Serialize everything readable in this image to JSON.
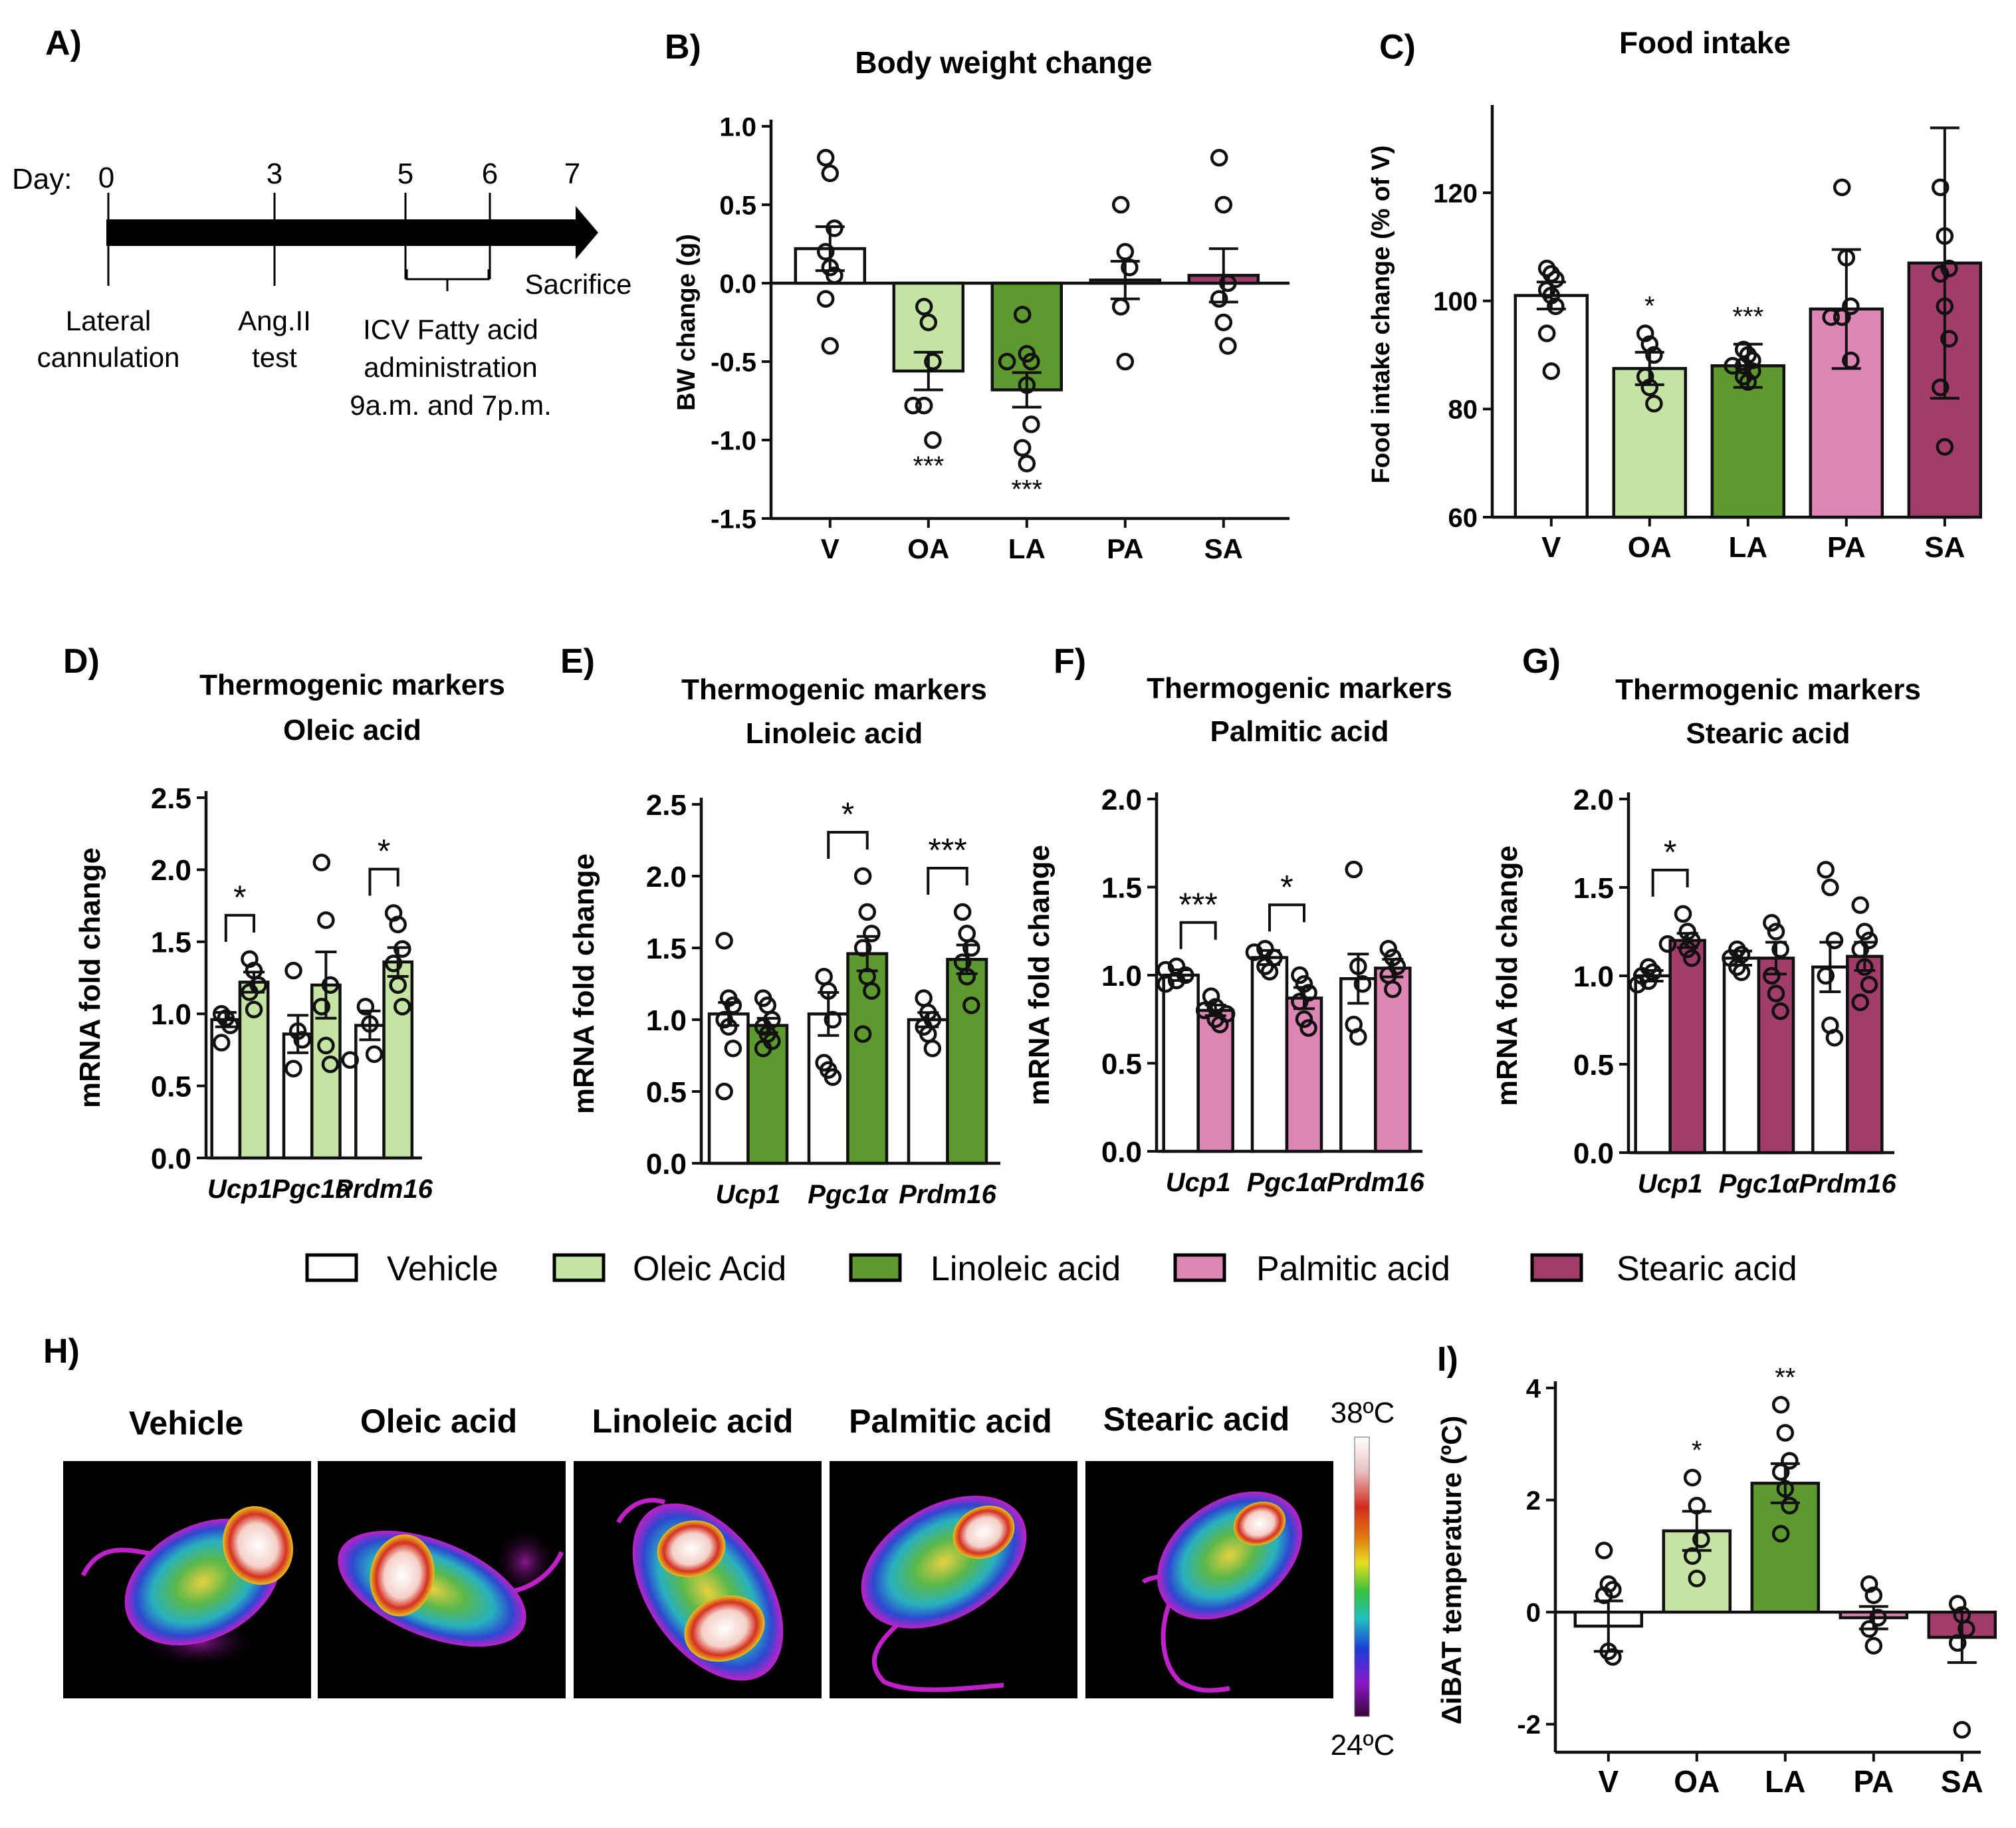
{
  "colors": {
    "V": "#ffffff",
    "OA": "#c5e3a2",
    "LA": "#5e9930",
    "PA": "#dd86b3",
    "SA": "#a23c6a",
    "axis": "#111111"
  },
  "panel_a": {
    "label": "A)",
    "day_label": "Day:",
    "days": [
      "0",
      "3",
      "5",
      "6",
      "7"
    ],
    "events": {
      "cannulation": [
        "Lateral",
        "cannulation"
      ],
      "angii": [
        "Ang.II",
        "test"
      ],
      "icv": [
        "ICV Fatty acid",
        "administration",
        "9a.m. and 7p.m."
      ],
      "sacrifice": "Sacrifice"
    }
  },
  "panel_d_label": "D)",
  "panel_e_label": "E)",
  "panel_f_label": "F)",
  "panel_g_label": "G)",
  "legend": [
    {
      "key": "V",
      "label": "Vehicle"
    },
    {
      "key": "OA",
      "label": "Oleic Acid"
    },
    {
      "key": "LA",
      "label": "Linoleic acid"
    },
    {
      "key": "PA",
      "label": "Palmitic acid"
    },
    {
      "key": "SA",
      "label": "Stearic acid"
    }
  ],
  "panel_h": {
    "label": "H)",
    "titles": [
      "Vehicle",
      "Oleic acid",
      "Linoleic acid",
      "Palmitic acid",
      "Stearic acid"
    ],
    "scale_max": "38ºC",
    "scale_min": "24ºC"
  },
  "chart_data": [
    {
      "id": "B",
      "panel_label": "B)",
      "type": "bar",
      "title": "Body weight change",
      "ylabel": "BW change (g)",
      "ylim": [
        -1.5,
        1.0
      ],
      "yticks": [
        "1.0",
        "0.5",
        "0.0",
        "-0.5",
        "-1.0",
        "-1.5"
      ],
      "categories": [
        "V",
        "OA",
        "LA",
        "PA",
        "SA"
      ],
      "values": [
        0.22,
        -0.56,
        -0.68,
        0.02,
        0.05
      ],
      "errors": [
        0.14,
        0.12,
        0.11,
        0.12,
        0.17
      ],
      "points": [
        [
          0.8,
          0.7,
          0.35,
          0.2,
          0.1,
          0.05,
          -0.1,
          -0.4
        ],
        [
          -0.15,
          -0.25,
          -0.5,
          -0.78,
          -0.78,
          -1.0
        ],
        [
          -0.2,
          -0.45,
          -0.5,
          -0.5,
          -0.65,
          -0.9,
          -1.05,
          -1.15
        ],
        [
          0.5,
          0.2,
          0.1,
          -0.15,
          -0.5
        ],
        [
          0.8,
          0.5,
          0.0,
          -0.1,
          -0.25,
          -0.4
        ]
      ],
      "annotations": [
        {
          "category": "OA",
          "text": "***"
        },
        {
          "category": "LA",
          "text": "***"
        }
      ]
    },
    {
      "id": "C",
      "panel_label": "C)",
      "type": "bar",
      "title": "Food intake",
      "ylabel": "Food intake change (% of V)",
      "ylim": [
        60,
        135
      ],
      "yticks": [
        "120",
        "100",
        "80",
        "60"
      ],
      "categories": [
        "V",
        "OA",
        "LA",
        "PA",
        "SA"
      ],
      "values": [
        101,
        87.5,
        88,
        98.5,
        107
      ],
      "errors": [
        2.5,
        3,
        4,
        11,
        25
      ],
      "points": [
        [
          106,
          105,
          104,
          102,
          101,
          99,
          94,
          87
        ],
        [
          94,
          92,
          90,
          86,
          84,
          81
        ],
        [
          91,
          90,
          89,
          88,
          88,
          87,
          86,
          85
        ],
        [
          121,
          108,
          99,
          97,
          97,
          89
        ],
        [
          121,
          112,
          106,
          105,
          99,
          93,
          84,
          73
        ]
      ],
      "annotations": [
        {
          "category": "OA",
          "text": "*"
        },
        {
          "category": "LA",
          "text": "***"
        }
      ]
    },
    {
      "id": "D",
      "type": "bar",
      "title": [
        "Thermogenic markers",
        "Oleic acid"
      ],
      "ylabel": "mRNA fold change",
      "ylim": [
        0,
        2.5
      ],
      "yticks": [
        "2.5",
        "2.0",
        "1.5",
        "1.0",
        "0.5",
        "0.0"
      ],
      "categories": [
        "Ucp1",
        "Pgc1α",
        "Prdm16"
      ],
      "treatment": "OA",
      "vehicle": {
        "values": [
          0.96,
          0.86,
          0.92
        ],
        "errors": [
          0.05,
          0.13,
          0.1
        ],
        "points": [
          [
            1.0,
            0.97,
            0.92,
            0.8
          ],
          [
            1.3,
            0.88,
            0.82,
            0.62
          ],
          [
            1.05,
            0.93,
            0.72,
            0.68
          ]
        ]
      },
      "treated": {
        "values": [
          1.22,
          1.2,
          1.36
        ],
        "errors": [
          0.07,
          0.23,
          0.1
        ],
        "points": [
          [
            1.38,
            1.3,
            1.2,
            1.15,
            1.03
          ],
          [
            2.05,
            1.65,
            1.2,
            1.05,
            0.78,
            0.65
          ],
          [
            1.7,
            1.62,
            1.45,
            1.35,
            1.2,
            1.05
          ]
        ]
      },
      "sig": [
        {
          "index": 0,
          "text": "*"
        },
        {
          "index": 2,
          "text": "*"
        }
      ]
    },
    {
      "id": "E",
      "type": "bar",
      "title": [
        "Thermogenic markers",
        "Linoleic acid"
      ],
      "ylabel": "mRNA fold change",
      "ylim": [
        0,
        2.5
      ],
      "yticks": [
        "2.5",
        "2.0",
        "1.5",
        "1.0",
        "0.5",
        "0.0"
      ],
      "categories": [
        "Ucp1",
        "Pgc1α",
        "Prdm16"
      ],
      "treatment": "LA",
      "vehicle": {
        "values": [
          1.04,
          1.04,
          1.0
        ],
        "errors": [
          0.08,
          0.15,
          0.05
        ],
        "points": [
          [
            1.55,
            1.15,
            1.1,
            1.0,
            0.95,
            0.8,
            0.5
          ],
          [
            1.3,
            1.2,
            1.0,
            0.7,
            0.65,
            0.6
          ],
          [
            1.15,
            1.05,
            1.0,
            0.95,
            0.9,
            0.8
          ]
        ]
      },
      "treated": {
        "values": [
          0.96,
          1.46,
          1.42
        ],
        "errors": [
          0.05,
          0.12,
          0.1
        ],
        "points": [
          [
            1.15,
            1.1,
            1.0,
            0.95,
            0.9,
            0.85,
            0.8
          ],
          [
            2.0,
            1.75,
            1.6,
            1.5,
            1.3,
            1.2,
            0.9
          ],
          [
            1.75,
            1.6,
            1.5,
            1.4,
            1.3,
            1.1
          ]
        ]
      },
      "sig": [
        {
          "index": 1,
          "text": "*"
        },
        {
          "index": 2,
          "text": "***"
        }
      ]
    },
    {
      "id": "F",
      "type": "bar",
      "title": [
        "Thermogenic markers",
        "Palmitic acid"
      ],
      "ylabel": "mRNA fold change",
      "ylim": [
        0,
        2.0
      ],
      "yticks": [
        "2.0",
        "1.5",
        "1.0",
        "0.5",
        "0.0"
      ],
      "categories": [
        "Ucp1",
        "Pgc1α",
        "Prdm16"
      ],
      "treatment": "PA",
      "vehicle": {
        "values": [
          1.0,
          1.1,
          0.98
        ],
        "errors": [
          0.03,
          0.04,
          0.14
        ],
        "points": [
          [
            1.05,
            1.03,
            1.0,
            0.97,
            0.95
          ],
          [
            1.15,
            1.13,
            1.1,
            1.05,
            1.02
          ],
          [
            1.6,
            1.05,
            0.95,
            0.72,
            0.65
          ]
        ]
      },
      "treated": {
        "values": [
          0.8,
          0.87,
          1.04
        ],
        "errors": [
          0.03,
          0.06,
          0.05
        ],
        "points": [
          [
            0.88,
            0.82,
            0.8,
            0.78,
            0.75,
            0.72
          ],
          [
            1.0,
            0.95,
            0.9,
            0.85,
            0.75,
            0.7
          ],
          [
            1.15,
            1.1,
            1.05,
            1.0,
            0.92
          ]
        ]
      },
      "sig": [
        {
          "index": 0,
          "text": "***"
        },
        {
          "index": 1,
          "text": "*"
        }
      ]
    },
    {
      "id": "G",
      "type": "bar",
      "title": [
        "Thermogenic markers",
        "Stearic acid"
      ],
      "ylabel": "mRNA fold change",
      "ylim": [
        0,
        2.0
      ],
      "yticks": [
        "2.0",
        "1.5",
        "1.0",
        "0.5",
        "0.0"
      ],
      "categories": [
        "Ucp1",
        "Pgc1α",
        "Prdm16"
      ],
      "treatment": "SA",
      "vehicle": {
        "values": [
          1.0,
          1.1,
          1.05
        ],
        "errors": [
          0.03,
          0.04,
          0.14
        ],
        "points": [
          [
            1.05,
            1.02,
            1.0,
            0.97,
            0.95
          ],
          [
            1.15,
            1.12,
            1.1,
            1.05,
            1.02
          ],
          [
            1.6,
            1.5,
            1.2,
            1.0,
            0.72,
            0.65
          ]
        ]
      },
      "treated": {
        "values": [
          1.2,
          1.1,
          1.11
        ],
        "errors": [
          0.04,
          0.09,
          0.08
        ],
        "points": [
          [
            1.35,
            1.25,
            1.2,
            1.18,
            1.15,
            1.1
          ],
          [
            1.3,
            1.25,
            1.15,
            1.0,
            0.9,
            0.8
          ],
          [
            1.4,
            1.25,
            1.2,
            1.15,
            1.05,
            0.95,
            0.85
          ]
        ]
      },
      "sig": [
        {
          "index": 0,
          "text": "*"
        }
      ]
    },
    {
      "id": "I",
      "panel_label": "I)",
      "type": "bar",
      "title": "",
      "ylabel": "ΔiBAT temperature (ºC)",
      "ylim": [
        -2.5,
        4
      ],
      "yticks": [
        "4",
        "2",
        "0",
        "-2"
      ],
      "categories": [
        "V",
        "OA",
        "LA",
        "PA",
        "SA"
      ],
      "values": [
        -0.25,
        1.45,
        2.3,
        -0.1,
        -0.45
      ],
      "errors": [
        0.45,
        0.35,
        0.35,
        0.2,
        0.45
      ],
      "points": [
        [
          1.1,
          0.5,
          0.4,
          0.3,
          -0.7,
          -0.8
        ],
        [
          2.4,
          1.9,
          1.3,
          1.0,
          0.6
        ],
        [
          3.7,
          3.2,
          2.7,
          2.5,
          2.2,
          1.9,
          1.4
        ],
        [
          0.5,
          0.3,
          -0.1,
          -0.3,
          -0.6
        ],
        [
          0.15,
          -0.05,
          -0.3,
          -0.55,
          -2.1
        ]
      ],
      "annotations": [
        {
          "category": "OA",
          "text": "*"
        },
        {
          "category": "LA",
          "text": "**"
        }
      ]
    }
  ]
}
